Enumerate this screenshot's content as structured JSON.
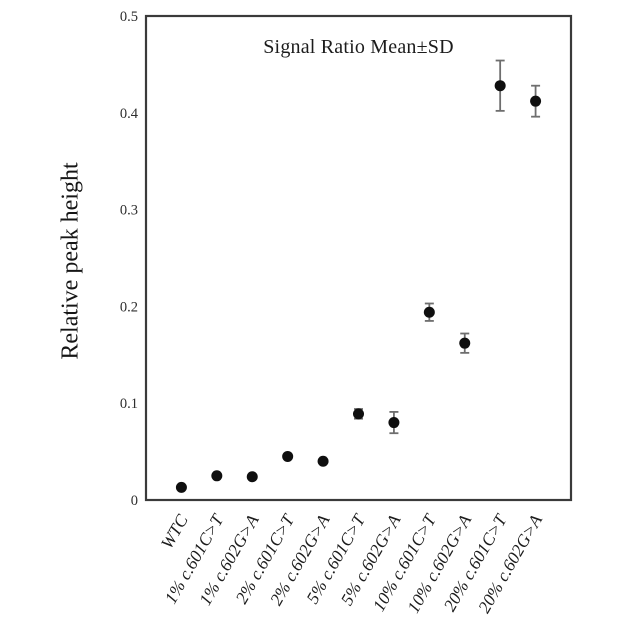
{
  "figure": {
    "background": "#ffffff"
  },
  "chart_data": {
    "type": "scatter",
    "title": "Signal Ratio Mean±SD",
    "xlabel": "",
    "ylabel": "Relative peak height",
    "categories": [
      "WTC",
      "1% c.601C>T",
      "1% c.602G>A",
      "2% c.601C>T",
      "2% c.602G>A",
      "5% c.601C>T",
      "5% c.602G>A",
      "10% c.601C>T",
      "10% c.602G>A",
      "20% c.601C>T",
      "20% c.602G>A"
    ],
    "series": [
      {
        "name": "Signal Ratio Mean±SD",
        "values": [
          0.013,
          0.025,
          0.024,
          0.045,
          0.04,
          0.089,
          0.08,
          0.194,
          0.162,
          0.428,
          0.412
        ],
        "sd": [
          0,
          0,
          0,
          0,
          0,
          0.005,
          0.011,
          0.009,
          0.01,
          0.026,
          0.016
        ]
      }
    ],
    "ylim": [
      0,
      0.5
    ],
    "yticks": [
      0,
      0.1,
      0.2,
      0.3,
      0.4,
      0.5
    ],
    "ytick_labels": [
      "0",
      "0.1",
      "0.2",
      "0.3",
      "0.4",
      "0.5"
    ],
    "grid": false,
    "legend": "none",
    "marker": "filled-circle",
    "error_bars": "±SD",
    "x_tick_rotation_deg": 60,
    "colors": {
      "point": "#0f0f0f",
      "error_bar": "#6e6e6e",
      "axis": "#3a3a3a",
      "text": "#1c1c1c"
    }
  }
}
